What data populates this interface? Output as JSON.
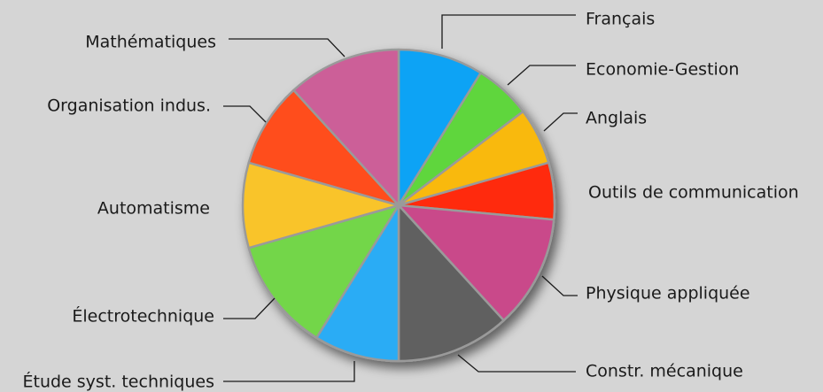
{
  "chart_data": {
    "type": "pie",
    "categories": [
      "Français",
      "Economie-Gestion",
      "Anglais",
      "Outils de communication",
      "Physique appliquée",
      "Constr. mécanique",
      "Étude syst. techniques",
      "Électrotechnique",
      "Automatisme",
      "Organisation indus.",
      "Mathématiques"
    ],
    "values": [
      3,
      2,
      2,
      2,
      4,
      4,
      3,
      4,
      3,
      3,
      4
    ],
    "colors": [
      "#0aa3f5",
      "#5fd63c",
      "#f9b90a",
      "#ff2c0a",
      "#c9488a",
      "#606060",
      "#29acf5",
      "#73d64a",
      "#f9c42a",
      "#ff4d1f",
      "#cc5e98"
    ],
    "start_angle": "12 o'clock",
    "direction": "clockwise",
    "legend": "none",
    "labels": "outside with leader lines"
  }
}
